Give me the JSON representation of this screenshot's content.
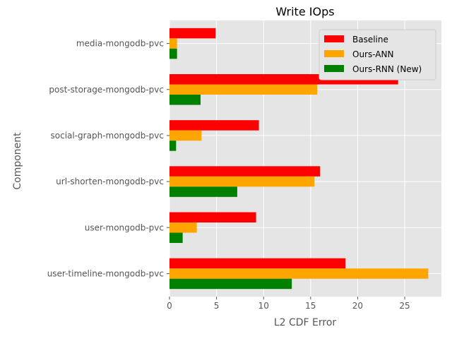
{
  "chart_data": {
    "type": "bar",
    "orientation": "horizontal",
    "title": "Write IOps",
    "xlabel": "L2 CDF Error",
    "ylabel": "Component",
    "categories": [
      "media-mongodb-pvc",
      "post-storage-mongodb-pvc",
      "social-graph-mongodb-pvc",
      "url-shorten-mongodb-pvc",
      "user-mongodb-pvc",
      "user-timeline-mongodb-pvc"
    ],
    "series": [
      {
        "name": "Baseline",
        "color": "#ff0000",
        "values": [
          4.9,
          24.3,
          9.5,
          16.0,
          9.2,
          18.7
        ]
      },
      {
        "name": "Ours-ANN",
        "color": "#ffa500",
        "values": [
          0.8,
          15.7,
          3.4,
          15.4,
          2.9,
          27.5
        ]
      },
      {
        "name": "Ours-RNN (New)",
        "color": "#008000",
        "values": [
          0.8,
          3.3,
          0.7,
          7.2,
          1.4,
          13.0
        ]
      }
    ],
    "xlim": [
      0,
      28.9
    ],
    "xticks": [
      0,
      5,
      10,
      15,
      20,
      25
    ],
    "grid": true,
    "legend_position": "upper-right",
    "background": "#e5e5e5"
  }
}
